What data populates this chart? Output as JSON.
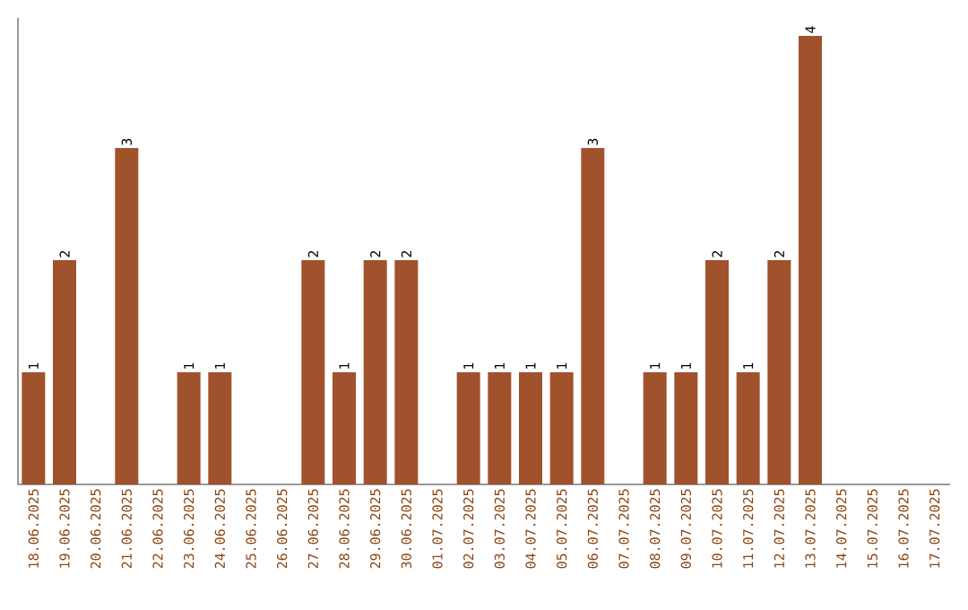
{
  "chart_data": {
    "type": "bar",
    "relative": false,
    "categories": [
      "18.06.2025",
      "19.06.2025",
      "20.06.2025",
      "21.06.2025",
      "22.06.2025",
      "23.06.2025",
      "24.06.2025",
      "25.06.2025",
      "26.06.2025",
      "27.06.2025",
      "28.06.2025",
      "29.06.2025",
      "30.06.2025",
      "01.07.2025",
      "02.07.2025",
      "03.07.2025",
      "04.07.2025",
      "05.07.2025",
      "06.07.2025",
      "07.07.2025",
      "08.07.2025",
      "09.07.2025",
      "10.07.2025",
      "11.07.2025",
      "12.07.2025",
      "13.07.2025",
      "14.07.2025",
      "15.07.2025",
      "16.07.2025",
      "17.07.2025"
    ],
    "values": [
      1,
      2,
      0,
      3,
      0,
      1,
      1,
      0,
      0,
      2,
      1,
      2,
      2,
      0,
      1,
      1,
      1,
      1,
      3,
      0,
      1,
      1,
      2,
      1,
      2,
      4,
      0,
      0,
      0,
      0
    ],
    "value_labels": [
      "1",
      "2",
      null,
      "3",
      null,
      "1",
      "1",
      null,
      null,
      "2",
      "1",
      "2",
      "2",
      null,
      "1",
      "1",
      "1",
      "1",
      "3",
      null,
      "1",
      "1",
      "2",
      "1",
      "2",
      "4",
      null,
      null,
      null,
      null
    ],
    "color": "#a0522d"
  }
}
